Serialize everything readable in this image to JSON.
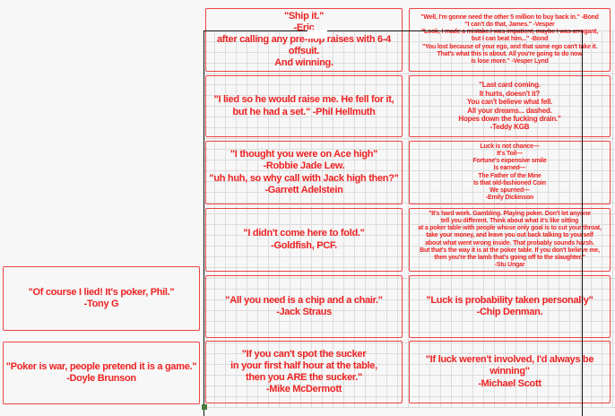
{
  "colors": {
    "card_border": "#ee4444",
    "text": "#ee2222",
    "frame": "#111111"
  },
  "cards": [
    {
      "col": 1,
      "row": 0,
      "size": "f11",
      "text": "\"Ship it.\"\n-Eric\nafter calling any pre-flop raises with 6-4 offsuit.\nAnd winning."
    },
    {
      "col": 2,
      "row": 0,
      "size": "f7",
      "text": "\"Well, I'm gonne need the other 5 million to buy back in.\" -Bond\n\"I can't do that, James.\" -Vesper\n\"Look, I made a mistake.I was impatient, maybe I was arrogant,\nbut I can beat him...\" -Bond\n\"You lost because of your ego, and that same ego can't take it.\nThat's what this is about. All you're going to do now\nis lose more.\" -Vesper Lynd"
    },
    {
      "col": 1,
      "row": 1,
      "size": "f11",
      "text": "\"I lied so he would raise me. He fell for it,\nbut he had a set.\" -Phil Hellmuth"
    },
    {
      "col": 2,
      "row": 1,
      "size": "f7b",
      "text": "\"Last card coming.\nIt hurts, doesn't it?\nYou can't believe what fell.\nAll your dreams... dashed.\nHopes down the fucking drain.\"\n-Teddy KGB"
    },
    {
      "col": 1,
      "row": 2,
      "size": "f11",
      "text": "\"I thought you were on Ace high\"\n-Robbie Jade Lew.\n\"uh huh, so why call with Jack high then?\"\n-Garrett Adelstein"
    },
    {
      "col": 2,
      "row": 2,
      "size": "f7",
      "text": "Luck is not chance—\nIt's Toil—\nFortune's expensive smile\nIs earned—\nThe Father of the Mine\nIs that old-fashioned Coin\nWe spurned—\n-Emily Dickinson"
    },
    {
      "col": 1,
      "row": 3,
      "size": "f11",
      "text": "\"I didn't come here to fold.\"\n-Goldfish, PCF."
    },
    {
      "col": 2,
      "row": 3,
      "size": "f7",
      "text": "\"It's hard work. Gambling. Playing poker. Don't let anyone\ntell you different. Think about what it's like sitting\nat a poker table with people whose only goal is to cut your throat,\ntake your money, and leave you out back talking to yourself\nabout what went wrong inside. That probably sounds harsh.\nBut that's the way it is at the poker table. If you don't believe me,\nthen you're the lamb that's going off to the slaughter.\"\n-Stu Ungar"
    },
    {
      "col": 1,
      "row": 4,
      "size": "f11",
      "text": "\"All you need is a chip and a chair.\"\n-Jack Straus"
    },
    {
      "col": 2,
      "row": 4,
      "size": "f11",
      "text": "\"Luck is probability taken personally\"\n-Chip Denman."
    },
    {
      "col": 1,
      "row": 5,
      "size": "f11",
      "text": "\"If you can't spot the sucker\nin your first half hour at the table,\nthen you ARE the sucker.\"\n-Mike McDermott"
    },
    {
      "col": 2,
      "row": 5,
      "size": "f11",
      "text": "\"If luck weren't involved, I'd always be winning\"\n-Michael Scott"
    },
    {
      "col": 0,
      "row": "a",
      "size": "f11",
      "text": "\"Of course I lied! It's poker, Phil.\"\n-Tony G"
    },
    {
      "col": 0,
      "row": "b",
      "size": "f11",
      "text": "\"Poker is war, people pretend it is a game.\"\n-Doyle Brunson"
    }
  ]
}
